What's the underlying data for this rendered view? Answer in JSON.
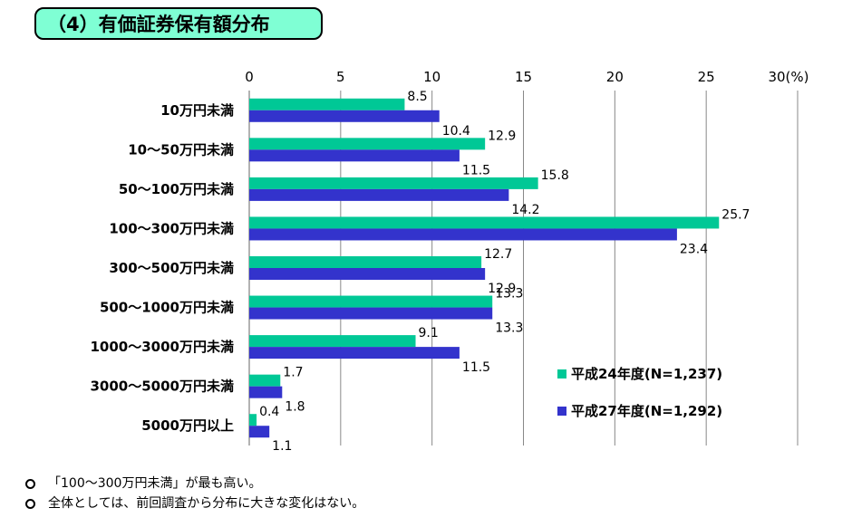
{
  "title": "（4）有価証券保有額分布",
  "colors": {
    "series1": "#00c896",
    "series2": "#3333cc",
    "grid": "#888888"
  },
  "chart_data": {
    "type": "bar",
    "orientation": "horizontal",
    "title": "（4）有価証券保有額分布",
    "categories": [
      "10万円未満",
      "10～50万円未満",
      "50～100万円未満",
      "100～300万円未満",
      "300～500万円未満",
      "500～1000万円未満",
      "1000～3000万円未満",
      "3000～5000万円未満",
      "5000万円以上"
    ],
    "series": [
      {
        "name": "平成24年度(N=1,237)",
        "values": [
          8.5,
          12.9,
          15.8,
          25.7,
          12.7,
          13.3,
          9.1,
          1.7,
          0.4
        ]
      },
      {
        "name": "平成27年度(N=1,292)",
        "values": [
          10.4,
          11.5,
          14.2,
          23.4,
          12.9,
          13.3,
          11.5,
          1.8,
          1.1
        ]
      }
    ],
    "value_labels": {
      "s1": [
        "8.5",
        "12.9",
        "15.8",
        "25.7",
        "12.7",
        "13.3",
        "9.1",
        "1.7",
        "0.4"
      ],
      "s2": [
        "10.4",
        "11.5",
        "14.2",
        "23.4",
        "12.9",
        "13.3",
        "11.5",
        "1.8",
        "1.1"
      ]
    },
    "xlim": [
      0,
      30
    ],
    "xticks": [
      "0",
      "5",
      "10",
      "15",
      "20",
      "25",
      "30(%)"
    ],
    "xaxis_position": "top",
    "grid": true,
    "legend_position": "bottom-right"
  },
  "notes": [
    "「100～300万円未満」が最も高い。",
    "全体としては、前回調査から分布に大きな変化はない。"
  ]
}
